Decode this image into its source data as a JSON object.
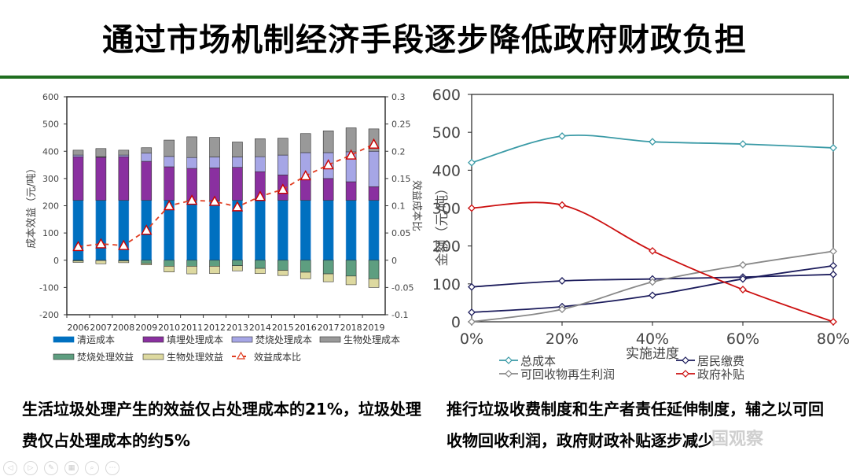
{
  "title": "通过市场机制经济手段逐步降低政府财政负担",
  "colors": {
    "rule": "#1f6e1f",
    "clean": "#0070c0",
    "landfill": "#8a30a0",
    "incin_cost": "#a6a6e6",
    "bio_cost": "#999999",
    "incin_benefit": "#5e9e80",
    "bio_benefit": "#ddd9a0",
    "ratio": "#e03c20",
    "total": "#3a9aa6",
    "resident": "#1c1c5c",
    "recycle": "#888888",
    "subsidy": "#cc1010"
  },
  "chart_data": [
    {
      "type": "bar",
      "stacked": true,
      "categories": [
        "2006",
        "2007",
        "2008",
        "2009",
        "2010",
        "2011",
        "2012",
        "2013",
        "2014",
        "2015",
        "2016",
        "2017",
        "2018",
        "2019"
      ],
      "series": [
        {
          "name": "清运成本",
          "key": "clean",
          "values": [
            220,
            220,
            220,
            220,
            220,
            220,
            220,
            220,
            220,
            220,
            220,
            220,
            220,
            220
          ]
        },
        {
          "name": "填埋处理成本",
          "key": "landfill",
          "values": [
            160,
            158,
            160,
            143,
            123,
            117,
            119,
            121,
            105,
            93,
            80,
            80,
            68,
            50
          ]
        },
        {
          "name": "焚烧处理成本",
          "key": "incin_cost",
          "values": [
            6,
            2,
            6,
            30,
            38,
            40,
            40,
            38,
            55,
            73,
            95,
            95,
            110,
            130
          ]
        },
        {
          "name": "生物处理成本",
          "key": "bio_cost",
          "values": [
            18,
            30,
            18,
            20,
            60,
            76,
            72,
            55,
            66,
            62,
            70,
            80,
            88,
            82
          ]
        },
        {
          "name": "焚烧处理效益",
          "key": "incin_benefit",
          "values": [
            -3,
            -1,
            -3,
            -12,
            -22,
            -22,
            -22,
            -20,
            -30,
            -37,
            -44,
            -50,
            -58,
            -68
          ]
        },
        {
          "name": "生物处理效益",
          "key": "bio_benefit",
          "values": [
            -5,
            -12,
            -6,
            -5,
            -21,
            -28,
            -27,
            -19,
            -19,
            -19,
            -24,
            -29,
            -32,
            -32
          ]
        },
        {
          "name": "效益成本比",
          "key": "ratio",
          "type": "line",
          "axis": "right",
          "values": [
            0.025,
            0.03,
            0.027,
            0.055,
            0.1,
            0.11,
            0.108,
            0.098,
            0.117,
            0.13,
            0.155,
            0.175,
            0.193,
            0.213
          ]
        }
      ],
      "ylabel": "成本效益（元/吨）",
      "ylim": [
        -200,
        600
      ],
      "yticks": [
        "600",
        "500",
        "400",
        "300",
        "200",
        "100",
        "0",
        "-100",
        "-200"
      ],
      "y2label": "效益成本比",
      "y2lim": [
        -0.1,
        0.3
      ],
      "y2ticks": [
        "0.3",
        "0.25",
        "0.2",
        "0.15",
        "0.1",
        "0.05",
        "0",
        "-0.05",
        "-0.1"
      ],
      "legend": "bottom",
      "grid": false
    },
    {
      "type": "line",
      "x": [
        "0%",
        "20%",
        "40%",
        "60%",
        "80%"
      ],
      "xlabel": "实施进度",
      "ylabel": "金额（元/吨）",
      "ylim": [
        0,
        600
      ],
      "yticks": [
        "600",
        "500",
        "400",
        "300",
        "200",
        "100",
        "0"
      ],
      "series": [
        {
          "name": "总成本",
          "key": "total",
          "values": [
            420,
            490,
            475,
            469,
            459
          ]
        },
        {
          "name": "居民缴费",
          "key": "resident",
          "values": [
            92,
            108,
            113,
            118,
            125
          ]
        },
        {
          "name": "居民缴费",
          "key": "resident",
          "legend": false,
          "values": [
            25,
            40,
            70,
            113,
            148
          ]
        },
        {
          "name": "可回收物再生利润",
          "key": "recycle",
          "values": [
            0,
            33,
            105,
            150,
            186
          ]
        },
        {
          "name": "政府补贴",
          "key": "subsidy",
          "values": [
            300,
            308,
            187,
            85,
            0
          ]
        }
      ],
      "legend_items": [
        "总成本",
        "居民缴费",
        "可回收物再生利润",
        "政府补贴"
      ],
      "legend": "bottom",
      "grid": false
    }
  ],
  "captions": {
    "left": "生活垃圾处理产生的效益仅占处理成本的21%，垃圾处理费仅占处理成本的约5%",
    "right": "推行垃圾收费制度和生产者责任延伸制度，辅之以可回收物回收利润，政府财政补贴逐步减少"
  },
  "watermark": "国观察",
  "nav": [
    "◁",
    "▷",
    "✎",
    "▦",
    "⌕",
    "⋯"
  ]
}
